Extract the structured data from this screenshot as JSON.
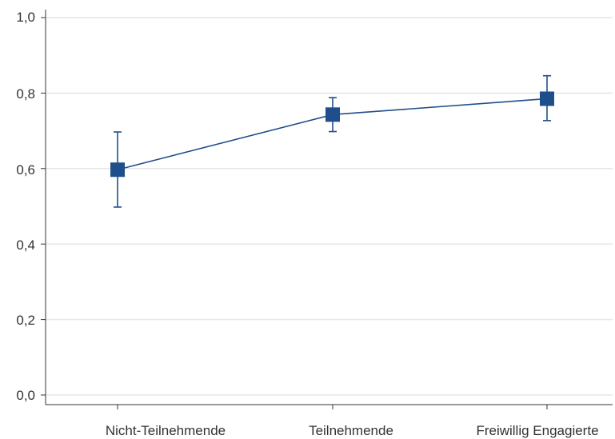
{
  "chart_data": {
    "type": "line",
    "categories": [
      "Nicht-Teilnehmende",
      "Teilnehmende",
      "Freiwillig Engagierte"
    ],
    "series": [
      {
        "values": [
          0.597,
          0.743,
          0.785
        ],
        "ci_lower": [
          0.498,
          0.698,
          0.727
        ],
        "ci_upper": [
          0.697,
          0.788,
          0.846
        ]
      }
    ],
    "y_ticks": [
      "1,0",
      "0,8",
      "0,6",
      "0,4",
      "0,2",
      "0,0"
    ],
    "y_tick_values": [
      1.0,
      0.8,
      0.6,
      0.4,
      0.2,
      0.0
    ],
    "ylim": [
      0,
      1
    ],
    "error_bars": true,
    "marker": "square",
    "grid": true,
    "legend": "none",
    "title": "",
    "xlabel": "",
    "ylabel": ""
  },
  "colors": {
    "series": "#1f4e8c",
    "grid": "#e6e6e6",
    "axis": "#333333"
  }
}
